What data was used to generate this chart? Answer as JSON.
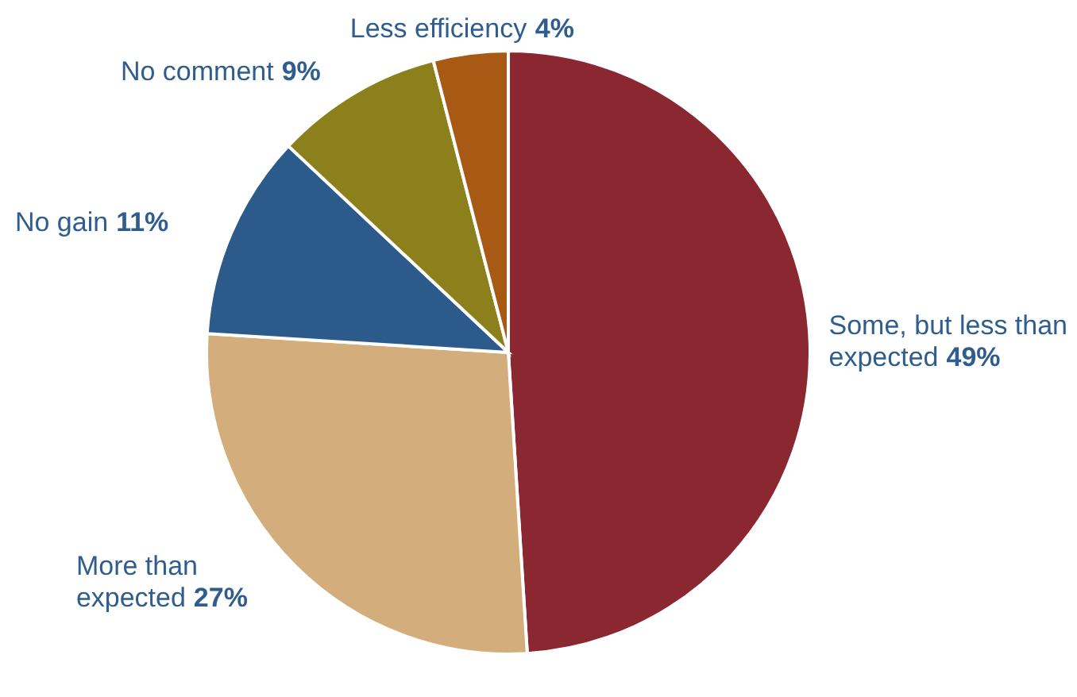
{
  "chart_data": {
    "type": "pie",
    "categories": [
      "Some, but less than expected",
      "More than expected",
      "No gain",
      "No comment",
      "Less efficiency"
    ],
    "values": [
      49,
      27,
      11,
      9,
      4
    ],
    "value_labels": [
      "49%",
      "27%",
      "11%",
      "9%",
      "4%"
    ],
    "colors": [
      "#8b2731",
      "#d3ad7b",
      "#2c5b8b",
      "#8b801b",
      "#a85914"
    ]
  }
}
